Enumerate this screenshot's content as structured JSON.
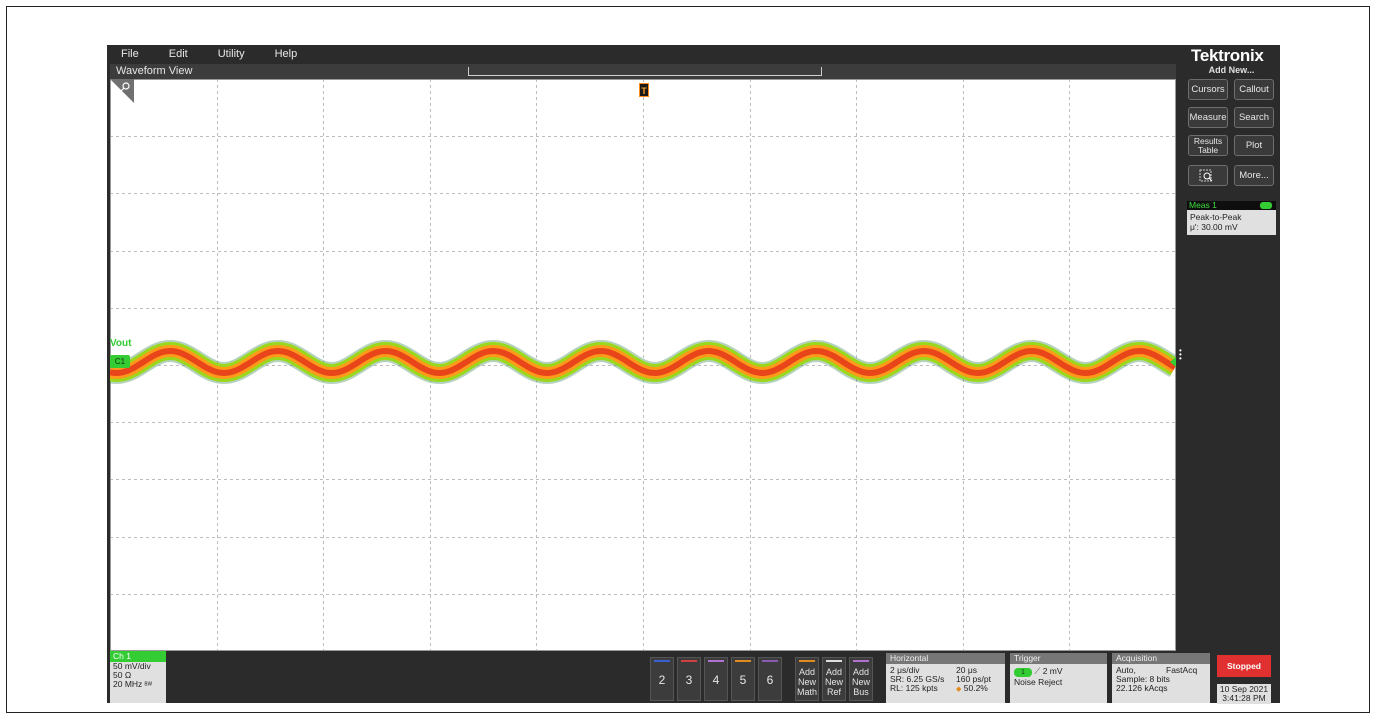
{
  "menu": {
    "items": [
      "File",
      "Edit",
      "Utility",
      "Help"
    ]
  },
  "waveform_view": {
    "title": "Waveform View",
    "trigger_marker": "T",
    "channel_label": "Vout",
    "channel_handle": "C1"
  },
  "right_panel": {
    "logo": "Tektronix",
    "add_new": "Add New...",
    "buttons": {
      "cursors": "Cursors",
      "callout": "Callout",
      "measure": "Measure",
      "search": "Search",
      "results_table_line1": "Results",
      "results_table_line2": "Table",
      "plot": "Plot",
      "more": "More..."
    },
    "measurement": {
      "name": "Meas 1",
      "type": "Peak-to-Peak",
      "value": "μ': 30.00 mV"
    }
  },
  "bottom": {
    "ch1": {
      "title": "Ch 1",
      "scale": "50 mV/div",
      "impedance": "50 Ω",
      "bandwidth": "20 MHz"
    },
    "channel_buttons": [
      "2",
      "3",
      "4",
      "5",
      "6"
    ],
    "add_buttons": [
      {
        "l1": "Add",
        "l2": "New",
        "l3": "Math"
      },
      {
        "l1": "Add",
        "l2": "New",
        "l3": "Ref"
      },
      {
        "l1": "Add",
        "l2": "New",
        "l3": "Bus"
      }
    ],
    "horizontal": {
      "title": "Horizontal",
      "scale": "2 μs/div",
      "duration": "20 μs",
      "sample_rate": "SR: 6.25 GS/s",
      "resolution": "160 ps/pt",
      "record_length": "RL: 125 kpts",
      "position": "50.2%"
    },
    "trigger": {
      "title": "Trigger",
      "source": "1",
      "level": "2 mV",
      "mode": "Noise Reject"
    },
    "acquisition": {
      "title": "Acquisition",
      "mode": "Auto,",
      "type": "FastAcq",
      "sample": "Sample: 8 bits",
      "count": "22.126 kAcqs"
    },
    "run_state": "Stopped",
    "date": "10 Sep 2021",
    "time": "3:41:28 PM"
  },
  "colors": {
    "ch1": "#33cc33",
    "trace_core": "#e8451a",
    "trace_mid": "#ff9a1a",
    "trace_outer": "#9ad81e",
    "stopped": "#e03030"
  }
}
